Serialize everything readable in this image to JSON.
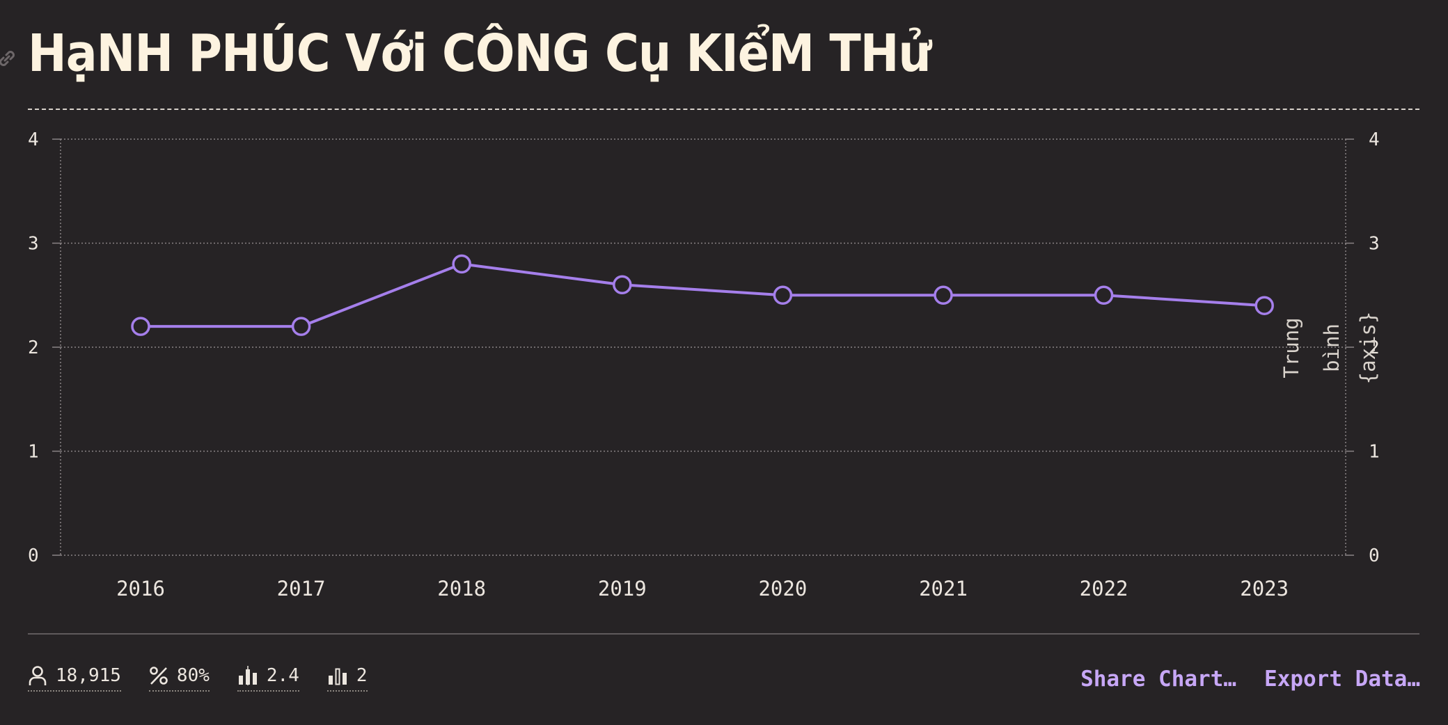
{
  "title": "HạNH PHÚC Với CÔNG Cụ KIểM THử",
  "chart_data": {
    "type": "line",
    "title": "HạNH PHÚC Với CÔNG Cụ KIểM THử",
    "categories": [
      "2016",
      "2017",
      "2018",
      "2019",
      "2020",
      "2021",
      "2022",
      "2023"
    ],
    "series": [
      {
        "values": [
          2.2,
          2.2,
          2.8,
          2.6,
          2.5,
          2.5,
          2.5,
          2.4
        ],
        "color": "#A57FEB"
      }
    ],
    "ylim": [
      0,
      4
    ],
    "yticks": [
      0,
      1,
      2,
      3,
      4
    ],
    "y_axes": "left-and-right",
    "right_axis_label": [
      "Trung",
      "bình",
      "{axis}"
    ],
    "grid": true
  },
  "footer": {
    "stats": [
      {
        "icon": "person-icon",
        "value": "18,915"
      },
      {
        "icon": "percent-icon",
        "value": "80%"
      },
      {
        "icon": "bar-chart-icon",
        "value": "2.4"
      },
      {
        "icon": "bar-chart-outline-icon",
        "value": "2"
      }
    ],
    "share_label": "Share Chart…",
    "export_label": "Export Data…"
  },
  "colors": {
    "background": "#262325",
    "line": "#A57FEB",
    "title": "#FDF3E0",
    "action": "#C7A7F6"
  }
}
